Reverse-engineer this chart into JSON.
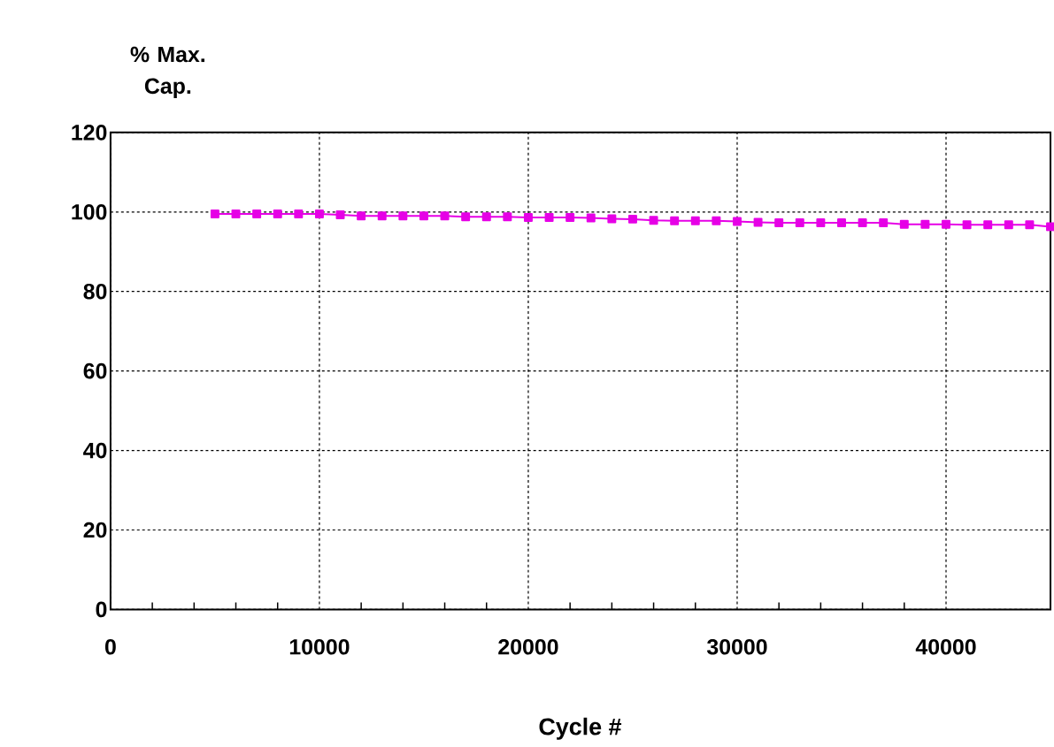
{
  "chart_data": {
    "type": "line",
    "xlabel": "Cycle #",
    "ylabel": "% Max. Cap.",
    "x": [
      5000,
      6000,
      7000,
      8000,
      9000,
      10000,
      11000,
      12000,
      13000,
      14000,
      15000,
      16000,
      17000,
      18000,
      19000,
      20000,
      21000,
      22000,
      23000,
      24000,
      25000,
      26000,
      27000,
      28000,
      29000,
      30000,
      31000,
      32000,
      33000,
      34000,
      35000,
      36000,
      37000,
      38000,
      39000,
      40000,
      41000,
      42000,
      43000,
      44000,
      45000
    ],
    "series": [
      {
        "color": "#e600e6",
        "values": [
          99.5,
          99.5,
          99.5,
          99.5,
          99.5,
          99.5,
          99.3,
          99.0,
          99.0,
          99.0,
          99.0,
          99.0,
          98.8,
          98.8,
          98.8,
          98.6,
          98.6,
          98.6,
          98.5,
          98.3,
          98.2,
          97.9,
          97.8,
          97.8,
          97.8,
          97.6,
          97.4,
          97.3,
          97.3,
          97.3,
          97.3,
          97.3,
          97.3,
          96.9,
          96.9,
          96.9,
          96.8,
          96.8,
          96.8,
          96.8,
          96.3
        ]
      }
    ],
    "xlim": [
      0,
      45000
    ],
    "ylim": [
      0,
      120
    ],
    "xticks": [
      0,
      10000,
      20000,
      30000,
      40000
    ],
    "yticks": [
      0,
      20,
      40,
      60,
      80,
      100,
      120
    ],
    "grid": true,
    "marker": "square",
    "line_style": "solid"
  }
}
